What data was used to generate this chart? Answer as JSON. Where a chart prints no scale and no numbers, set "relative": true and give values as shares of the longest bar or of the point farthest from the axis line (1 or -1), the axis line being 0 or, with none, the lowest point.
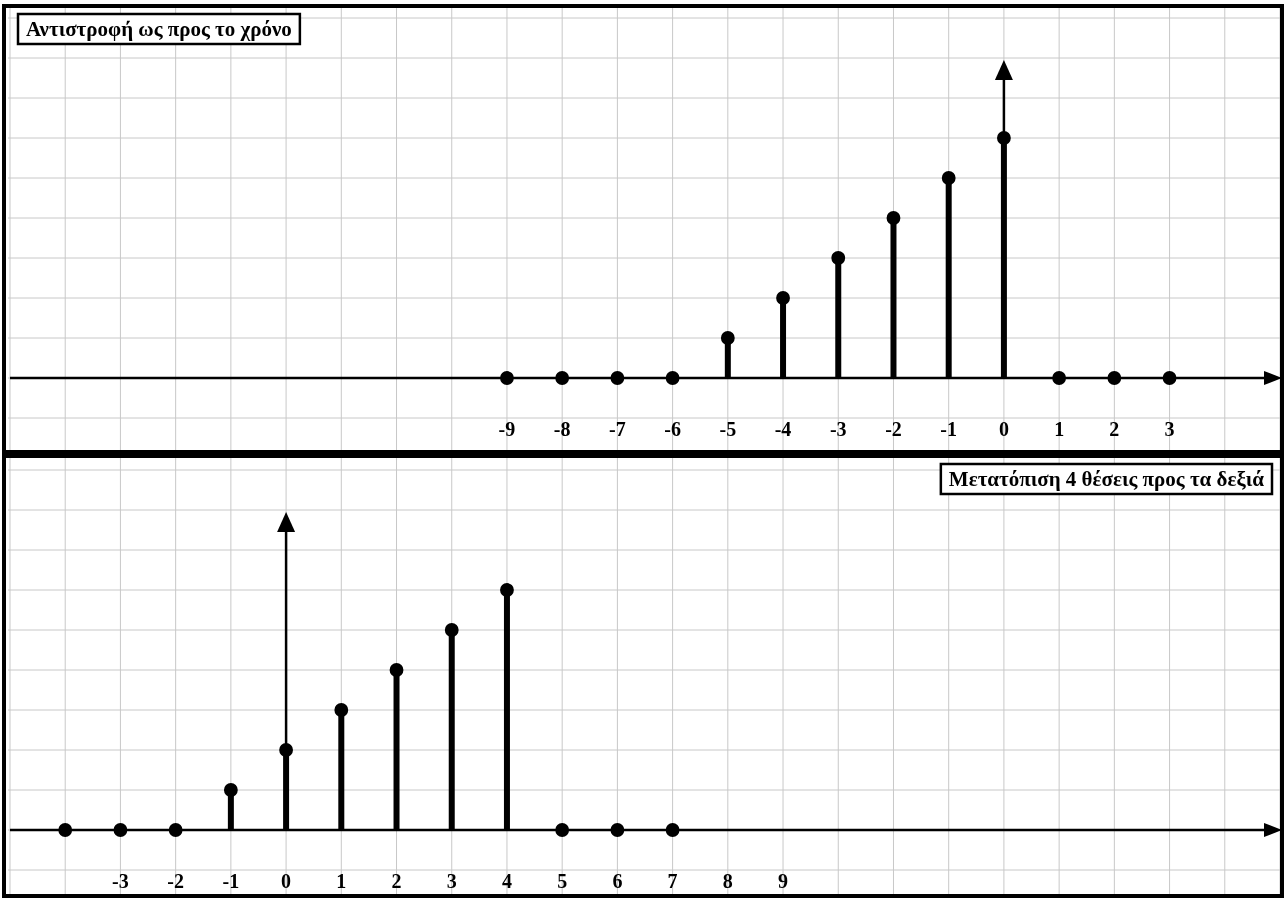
{
  "chart_data": [
    {
      "type": "lollipop",
      "title": "Αντιστροφή ως προς το χρόνο",
      "relative": true,
      "x": [
        -9,
        -8,
        -7,
        -6,
        -5,
        -4,
        -3,
        -2,
        -1,
        0,
        1,
        2,
        3
      ],
      "values": [
        0,
        0,
        0,
        0,
        0.1667,
        0.3333,
        0.5,
        0.6667,
        0.8333,
        1,
        0,
        0,
        0
      ],
      "color": "#000000",
      "xlim": [
        -18,
        5
      ],
      "xticks": [
        -9,
        -8,
        -7,
        -6,
        -5,
        -4,
        -3,
        -2,
        -1,
        0,
        1,
        2,
        3
      ],
      "grid": true,
      "marker": "circle"
    },
    {
      "type": "lollipop",
      "title": "Μετατόπιση 4 θέσεις προς τα δεξιά",
      "relative": true,
      "x": [
        -4,
        -3,
        -2,
        -1,
        0,
        1,
        2,
        3,
        4,
        5,
        6,
        7
      ],
      "values": [
        0,
        0,
        0,
        0.1667,
        0.3333,
        0.5,
        0.6667,
        0.8333,
        1,
        0,
        0,
        0
      ],
      "color": "#000000",
      "xlim": [
        -5,
        18
      ],
      "xticks": [
        -3,
        -2,
        -1,
        0,
        1,
        2,
        3,
        4,
        5,
        6,
        7,
        8,
        9
      ],
      "grid": true,
      "marker": "circle"
    }
  ]
}
